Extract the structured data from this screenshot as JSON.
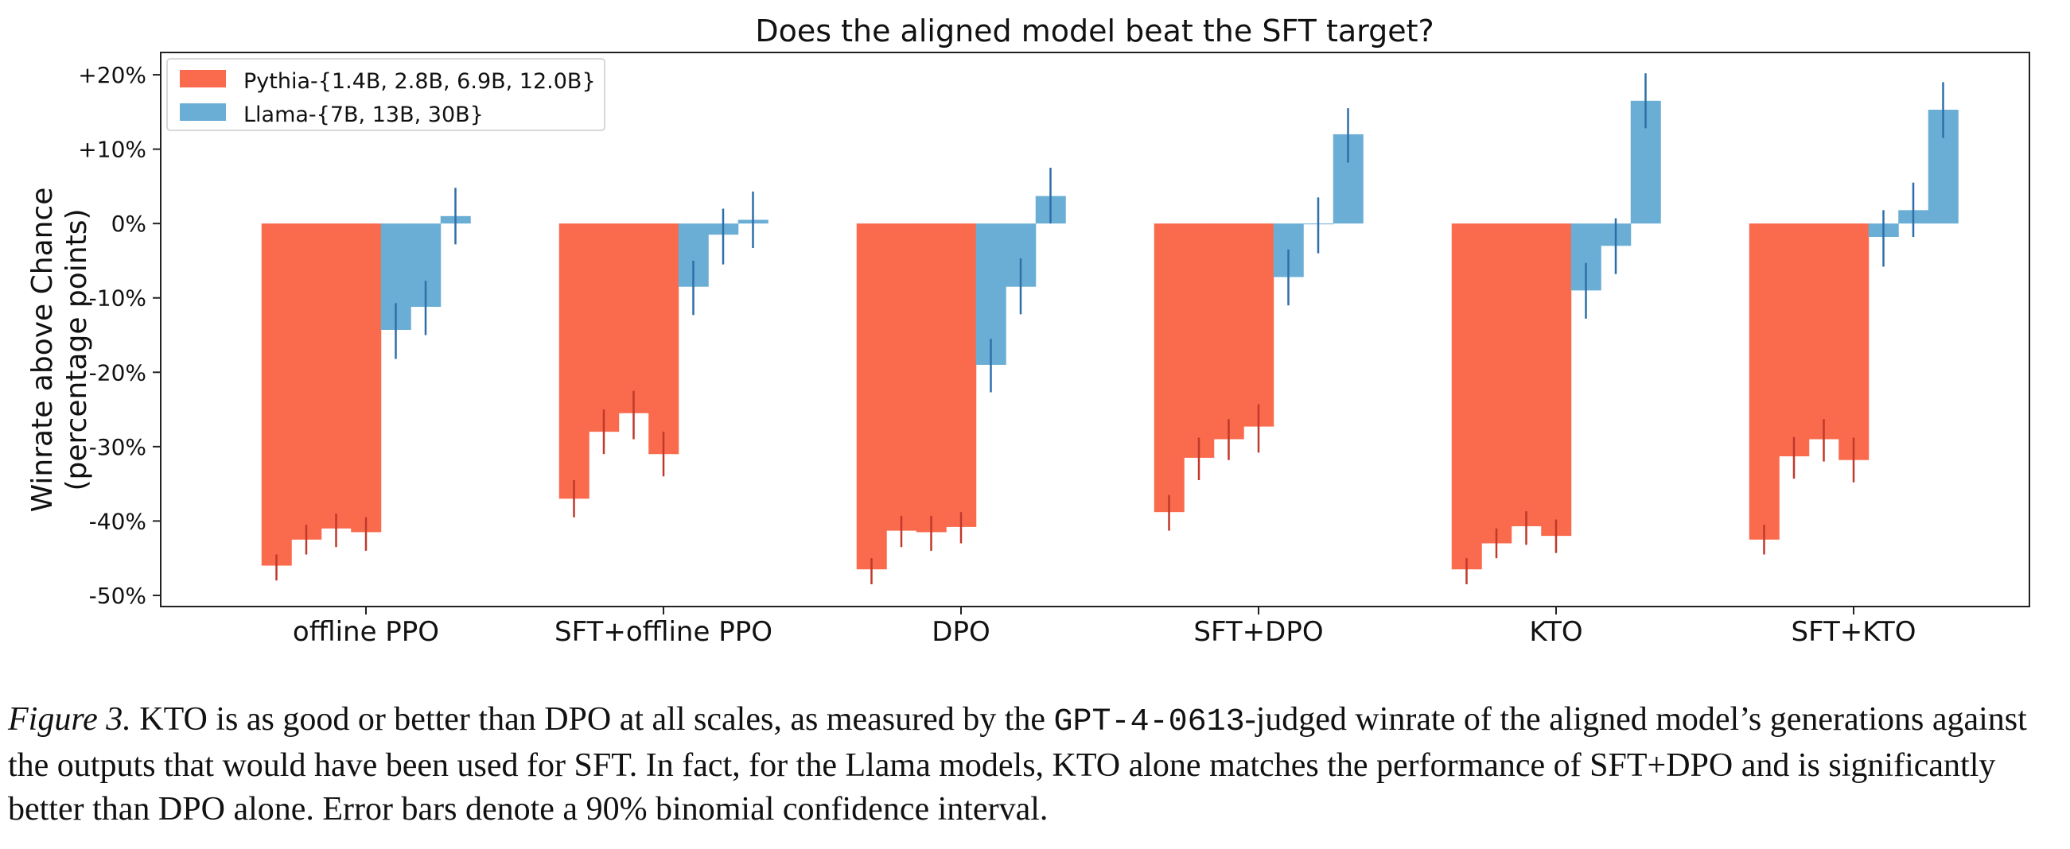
{
  "chart_data": {
    "type": "bar",
    "title": "Does the aligned model beat the SFT target?",
    "ylabel": [
      "Winrate above Chance",
      "(percentage points)"
    ],
    "xlabel": "",
    "ylim": [
      -51.5,
      23
    ],
    "yticks": [
      20,
      10,
      0,
      -10,
      -20,
      -30,
      -40,
      -50
    ],
    "ytick_labels": [
      "+20%",
      "+10%",
      "0%",
      "-10%",
      "-20%",
      "-30%",
      "-40%",
      "-50%"
    ],
    "categories": [
      "offline PPO",
      "SFT+offline PPO",
      "DPO",
      "SFT+DPO",
      "KTO",
      "SFT+KTO"
    ],
    "legend_position": "top-left",
    "series": [
      {
        "name": "Pythia-{1.4B, 2.8B, 6.9B, 12.0B}",
        "color": "#fa6a4c",
        "values": [
          [
            -46,
            -42.5,
            -41,
            -41.5
          ],
          [
            -37,
            -28,
            -25.5,
            -31
          ],
          [
            -46.5,
            -41.3,
            -41.5,
            -40.8
          ],
          [
            -38.8,
            -31.5,
            -29,
            -27.3
          ],
          [
            -46.5,
            -43,
            -40.7,
            -42
          ],
          [
            -42.5,
            -31.3,
            -29,
            -31.8
          ]
        ],
        "errors": [
          [
            [
              -48,
              -44.5
            ],
            [
              -44.5,
              -40.5
            ],
            [
              -43.5,
              -39
            ],
            [
              -44,
              -39.5
            ]
          ],
          [
            [
              -39.5,
              -34.5
            ],
            [
              -31,
              -25
            ],
            [
              -29,
              -22.5
            ],
            [
              -34,
              -28
            ]
          ],
          [
            [
              -48.5,
              -45
            ],
            [
              -43.5,
              -39.3
            ],
            [
              -44,
              -39.3
            ],
            [
              -43,
              -38.8
            ]
          ],
          [
            [
              -41.3,
              -36.5
            ],
            [
              -34.5,
              -28.8
            ],
            [
              -31.8,
              -26.3
            ],
            [
              -30.8,
              -24.3
            ]
          ],
          [
            [
              -48.5,
              -45
            ],
            [
              -45,
              -41
            ],
            [
              -43.2,
              -38.7
            ],
            [
              -44.3,
              -39.8
            ]
          ],
          [
            [
              -44.5,
              -40.5
            ],
            [
              -34.3,
              -28.7
            ],
            [
              -32,
              -26.3
            ],
            [
              -34.8,
              -28.8
            ]
          ]
        ]
      },
      {
        "name": "Llama-{7B, 13B, 30B}",
        "color": "#6aaed6",
        "values": [
          [
            -14.3,
            -11.2,
            1
          ],
          [
            -8.5,
            -1.5,
            0.5
          ],
          [
            -19,
            -8.5,
            3.7
          ],
          [
            -7.2,
            0,
            12
          ],
          [
            -9,
            -3,
            16.5
          ],
          [
            -1.8,
            1.8,
            15.3
          ]
        ],
        "errors": [
          [
            [
              -18.2,
              -10.7
            ],
            [
              -15,
              -7.7
            ],
            [
              -2.8,
              4.8
            ]
          ],
          [
            [
              -12.3,
              -5
            ],
            [
              -5.5,
              2
            ],
            [
              -3.3,
              4.3
            ]
          ],
          [
            [
              -22.7,
              -15.5
            ],
            [
              -12.2,
              -4.7
            ],
            [
              0,
              7.5
            ]
          ],
          [
            [
              -11,
              -3.5
            ],
            [
              -4,
              3.5
            ],
            [
              8.2,
              15.5
            ]
          ],
          [
            [
              -12.8,
              -5.3
            ],
            [
              -6.8,
              0.7
            ],
            [
              12.8,
              20.2
            ]
          ],
          [
            [
              -5.8,
              1.8
            ],
            [
              -1.8,
              5.5
            ],
            [
              11.5,
              19
            ]
          ]
        ]
      }
    ]
  },
  "caption": {
    "label": "Figure 3.",
    "text_before": " KTO is as good or better than DPO at all scales, as measured by the ",
    "code": "GPT-4-0613",
    "text_after": "-judged winrate of the aligned model’s generations against the outputs that would have been used for SFT. In fact, for the Llama models, KTO alone matches the performance of SFT+DPO and is significantly better than DPO alone. Error bars denote a 90% binomial confidence interval."
  }
}
